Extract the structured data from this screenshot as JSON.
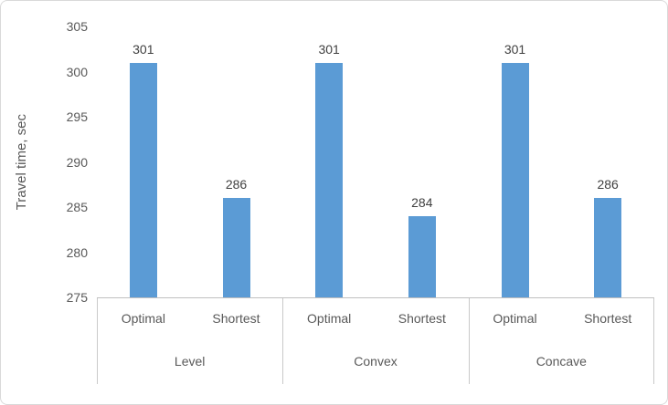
{
  "chart_data": {
    "type": "bar",
    "title": "",
    "ylabel": "Travel time, sec",
    "xlabel": "",
    "ylim": [
      275,
      305
    ],
    "yticks": [
      275,
      280,
      285,
      290,
      295,
      300,
      305
    ],
    "grid": false,
    "legend": false,
    "bar_color": "#5b9bd5",
    "groups": [
      {
        "label": "Level",
        "categories": [
          "Optimal",
          "Shortest"
        ],
        "values": [
          301,
          286
        ]
      },
      {
        "label": "Convex",
        "categories": [
          "Optimal",
          "Shortest"
        ],
        "values": [
          301,
          284
        ]
      },
      {
        "label": "Concave",
        "categories": [
          "Optimal",
          "Shortest"
        ],
        "values": [
          301,
          286
        ]
      }
    ]
  }
}
